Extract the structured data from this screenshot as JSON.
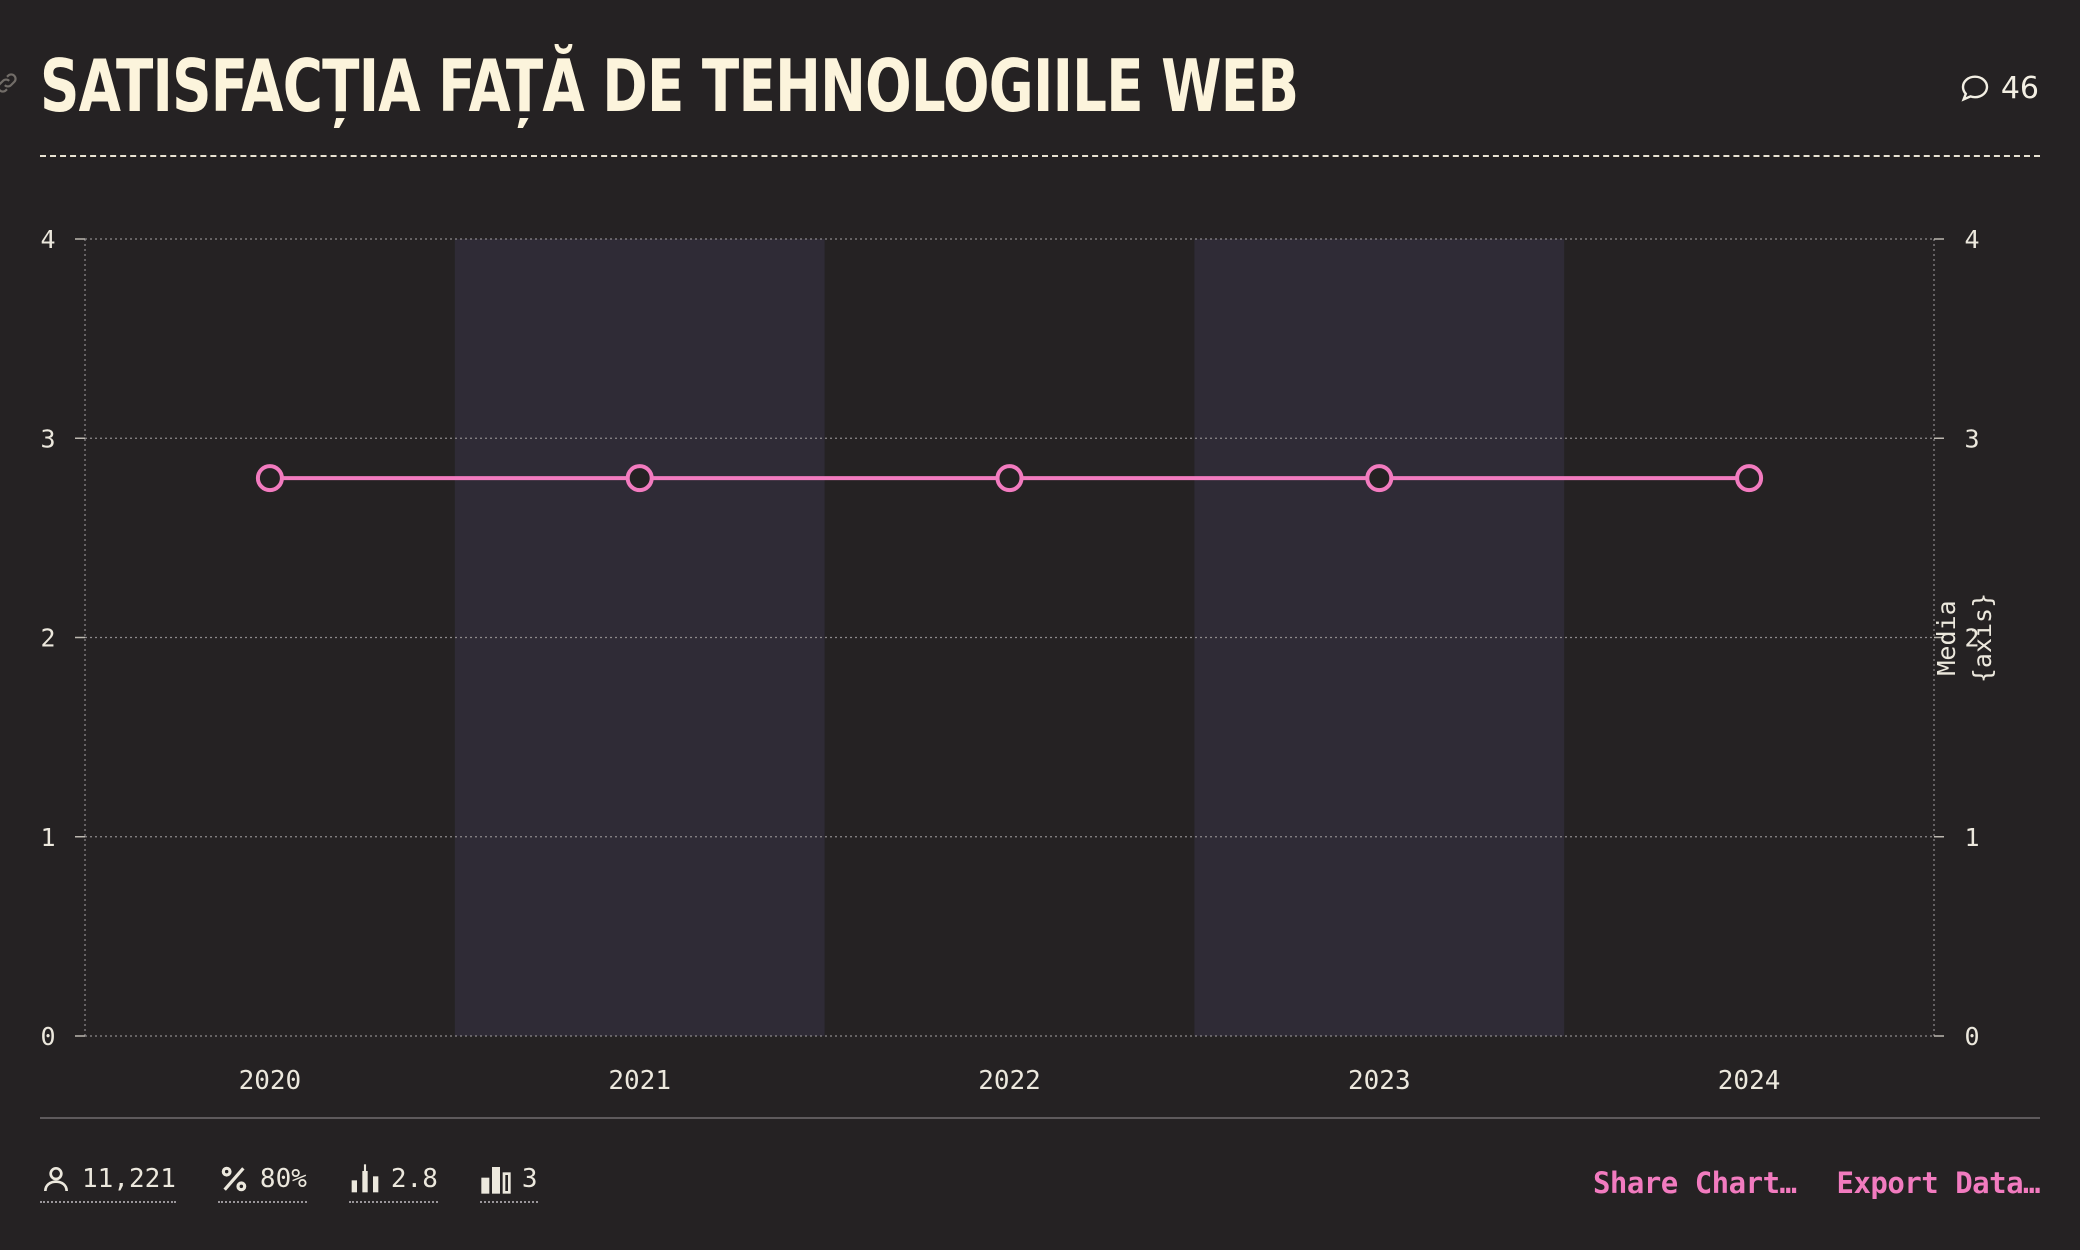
{
  "header": {
    "title": "SATISFACȚIA FAȚĂ DE TEHNOLOGIILE WEB",
    "comment_count": "46"
  },
  "chart_data": {
    "type": "line",
    "title": "SATISFACȚIA FAȚĂ DE TEHNOLOGIILE WEB",
    "x": [
      "2020",
      "2021",
      "2022",
      "2023",
      "2024"
    ],
    "series": [
      {
        "values": [
          2.8,
          2.8,
          2.8,
          2.8,
          2.8
        ],
        "color": "#f27bbf"
      }
    ],
    "ylim": [
      0,
      4
    ],
    "yticks": [
      "0",
      "1",
      "2",
      "3",
      "4"
    ],
    "y2label": "Media {axis}",
    "grid": true,
    "band_color": "#2f2b36"
  },
  "stats": {
    "respondents": "11,221",
    "percentage": "80%",
    "average": "2.8",
    "count": "3"
  },
  "actions": {
    "share": "Share Chart…",
    "export": "Export Data…"
  },
  "icons": [
    "link-icon",
    "comment-icon",
    "user-icon",
    "percent-icon",
    "bar-median-icon",
    "bar-chart-icon"
  ]
}
